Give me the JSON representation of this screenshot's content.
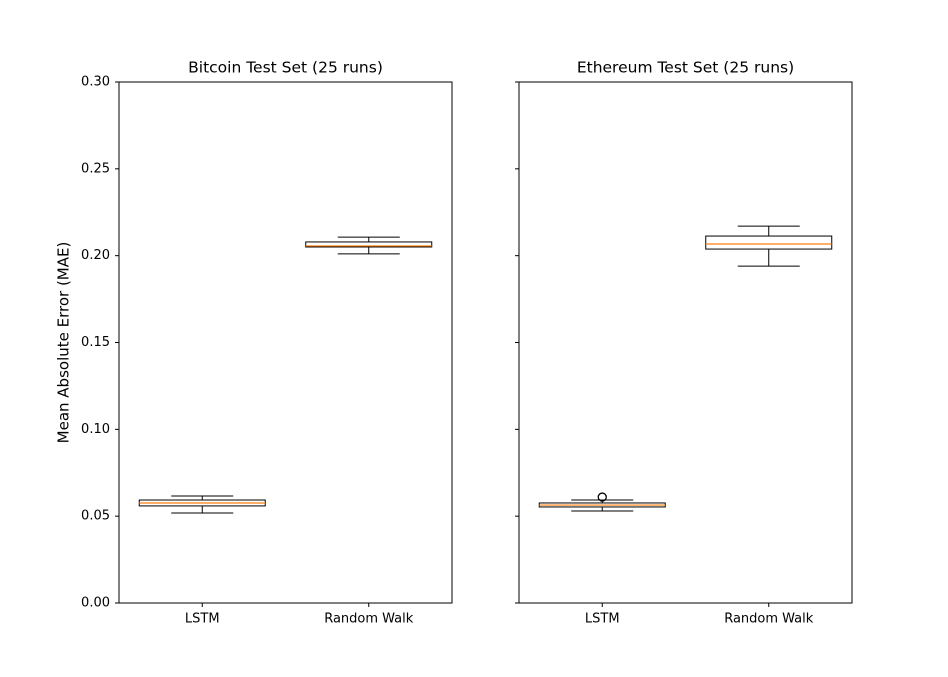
{
  "chart_data": [
    {
      "type": "box",
      "title": "Bitcoin Test Set (25 runs)",
      "ylabel": "Mean Absolute Error (MAE)",
      "categories": [
        "LSTM",
        "Random Walk"
      ],
      "whislo": [
        0.0518,
        0.201
      ],
      "q1": [
        0.0559,
        0.205
      ],
      "med": [
        0.0576,
        0.2056
      ],
      "q3": [
        0.0593,
        0.2079
      ],
      "whishi": [
        0.0616,
        0.2107
      ],
      "fliers": [
        [],
        []
      ],
      "ylim": [
        0,
        0.3
      ],
      "yticks": [
        {
          "value": 0,
          "label": "0.00"
        },
        {
          "value": 0.05,
          "label": "0.05"
        },
        {
          "value": 0.1,
          "label": "0.10"
        },
        {
          "value": 0.15,
          "label": "0.15"
        },
        {
          "value": 0.2,
          "label": "0.20"
        },
        {
          "value": 0.25,
          "label": "0.25"
        },
        {
          "value": 0.3,
          "label": "0.30"
        }
      ],
      "box_color": "#000000",
      "median_color": "#ff7f0e"
    },
    {
      "type": "box",
      "title": "Ethereum Test Set (25 runs)",
      "sharey": true,
      "categories": [
        "LSTM",
        "Random Walk"
      ],
      "whislo": [
        0.053,
        0.194
      ],
      "q1": [
        0.0553,
        0.2038
      ],
      "med": [
        0.0564,
        0.2067
      ],
      "q3": [
        0.0576,
        0.2113
      ],
      "whishi": [
        0.0593,
        0.217
      ],
      "fliers": [
        [
          0.061
        ],
        []
      ],
      "box_color": "#000000",
      "median_color": "#ff7f0e"
    }
  ]
}
